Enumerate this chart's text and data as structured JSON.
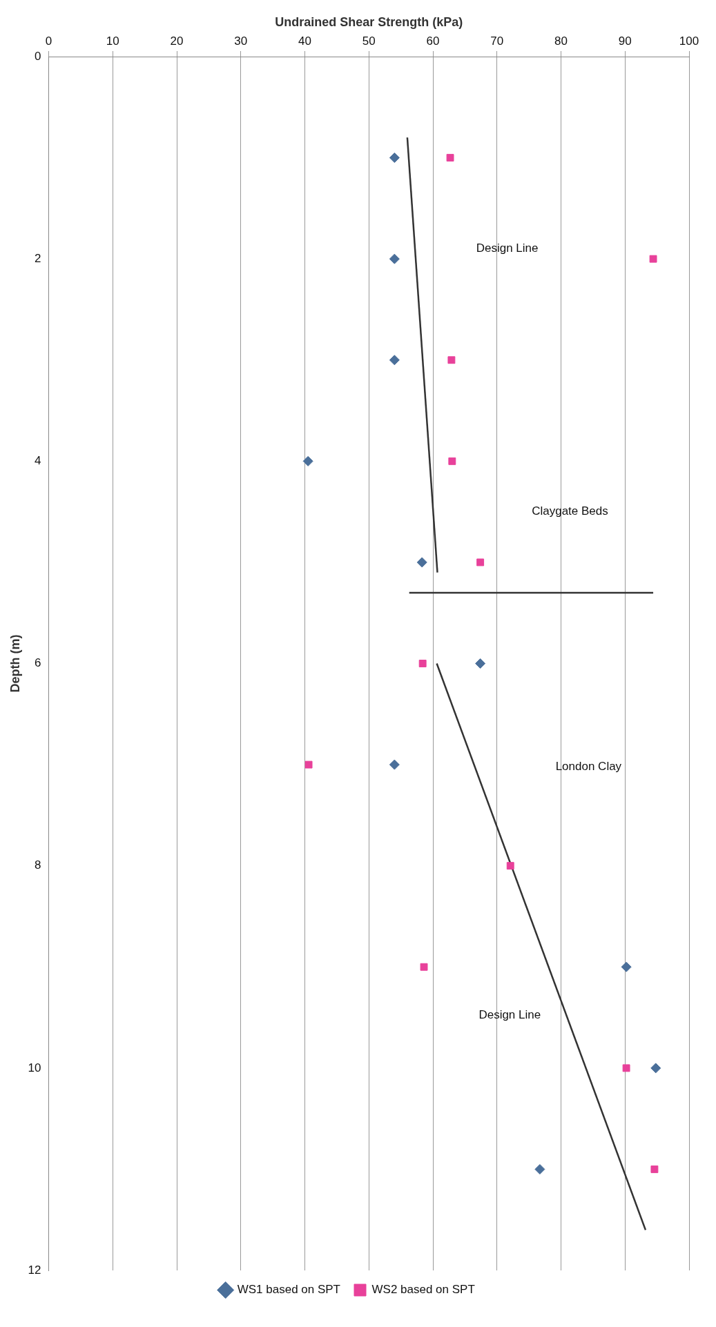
{
  "chart_data": {
    "type": "scatter",
    "xlabel": "Undrained Shear Strength (kPa)",
    "ylabel": "Depth (m)",
    "xlim": [
      0,
      100
    ],
    "xticks": [
      0,
      10,
      20,
      30,
      40,
      50,
      60,
      70,
      80,
      90,
      100
    ],
    "ylim": [
      12,
      0
    ],
    "yticks": [
      0,
      2,
      4,
      6,
      8,
      10,
      12
    ],
    "grid": "x",
    "legend": "bottom",
    "series": [
      {
        "name": "WS1 based on SPT",
        "color": "#4a6f9a",
        "marker": "diamond",
        "x": [
          54,
          54,
          54,
          40.5,
          58.3,
          67.4,
          54,
          90.2,
          94.8,
          76.7
        ],
        "values": [
          1,
          2,
          3,
          4,
          5,
          6,
          7,
          9,
          10,
          11
        ]
      },
      {
        "name": "WS2 based on SPT",
        "color": "#e8419a",
        "marker": "square",
        "x": [
          62.7,
          94.4,
          62.9,
          63,
          67.4,
          58.4,
          40.6,
          72.1,
          58.6,
          90.2,
          94.6
        ],
        "values": [
          1,
          2,
          3,
          4,
          5,
          6,
          7,
          8,
          9,
          10,
          11
        ]
      },
      {
        "type": "line",
        "color": "#333333",
        "marker": "none",
        "x": [
          56,
          60.7
        ],
        "values": [
          0.8,
          5.1
        ]
      },
      {
        "type": "line",
        "color": "#333333",
        "marker": "none",
        "x": [
          56.3,
          94.4
        ],
        "values": [
          5.3,
          5.3
        ]
      },
      {
        "type": "line",
        "color": "#333333",
        "marker": "none",
        "x": [
          60.6,
          93.2
        ],
        "values": [
          6,
          11.6
        ]
      }
    ],
    "annotations": [
      "Design Line",
      "Claygate Beds",
      "London Clay",
      "Design Line"
    ]
  }
}
